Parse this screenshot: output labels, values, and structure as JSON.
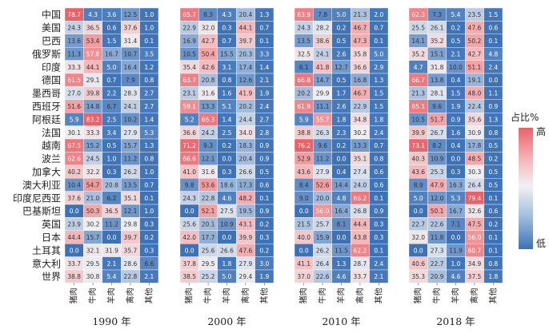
{
  "chart_data": {
    "type": "heatmap",
    "rows": [
      "中国",
      "美国",
      "巴西",
      "俄罗斯",
      "印度",
      "德国",
      "墨西哥",
      "西班牙",
      "阿根廷",
      "法国",
      "越南",
      "波兰",
      "加拿大",
      "澳大利亚",
      "印度尼西亚",
      "巴基斯坦",
      "英国",
      "日本",
      "土耳其",
      "意大利",
      "世界"
    ],
    "columns": [
      "猪肉",
      "牛肉",
      "羊肉",
      "禽肉",
      "其他"
    ],
    "legend": {
      "title": "占比%",
      "high": "高",
      "low": "低"
    },
    "panels": [
      {
        "title": "1990 年",
        "values": [
          [
            78.7,
            4.3,
            3.6,
            12.5,
            1.0
          ],
          [
            24.3,
            36.5,
            0.6,
            37.6,
            1.0
          ],
          [
            13.6,
            53.4,
            1.5,
            31.4,
            0.1
          ],
          [
            11.3,
            57.8,
            16.7,
            10.7,
            3.5
          ],
          [
            33.3,
            44.1,
            5.0,
            16.4,
            1.2
          ],
          [
            61.5,
            29.1,
            0.7,
            7.9,
            0.8
          ],
          [
            27.0,
            39.8,
            2.2,
            28.3,
            2.7
          ],
          [
            51.6,
            14.8,
            6.7,
            24.1,
            2.7
          ],
          [
            5.9,
            83.2,
            2.5,
            10.2,
            1.4
          ],
          [
            30.1,
            33.3,
            3.4,
            27.9,
            5.3
          ],
          [
            67.5,
            15.2,
            0.5,
            15.7,
            1.3
          ],
          [
            62.6,
            24.5,
            1.0,
            11.2,
            0.8
          ],
          [
            40.2,
            32.2,
            0.3,
            26.2,
            1.0
          ],
          [
            10.4,
            54.7,
            20.8,
            13.5,
            0.7
          ],
          [
            37.6,
            21.0,
            6.2,
            35.1,
            0.1
          ],
          [
            0.0,
            50.3,
            36.5,
            12.1,
            1.0
          ],
          [
            23.9,
            30.2,
            11.2,
            29.8,
            0.3
          ],
          [
            44.4,
            15.7,
            0.0,
            39.7,
            0.2
          ],
          [
            0.0,
            32.1,
            31.9,
            35.7,
            0.3
          ],
          [
            33.7,
            29.5,
            2.1,
            28.6,
            6.6
          ],
          [
            38.8,
            30.8,
            5.4,
            22.8,
            2.1
          ]
        ]
      },
      {
        "title": "2000 年",
        "values": [
          [
            65.7,
            8.3,
            4.3,
            20.4,
            1.3
          ],
          [
            22.9,
            32.0,
            0.3,
            44.1,
            0.7
          ],
          [
            16.9,
            42.7,
            0.7,
            39.7,
            0.1
          ],
          [
            10.5,
            50.4,
            15.5,
            20.3,
            3.3
          ],
          [
            35.4,
            42.6,
            3.1,
            17.4,
            1.4
          ],
          [
            63.7,
            20.8,
            0.8,
            12.6,
            2.1
          ],
          [
            23.1,
            31.6,
            1.6,
            41.9,
            1.9
          ],
          [
            59.1,
            13.3,
            5.1,
            20.2,
            2.4
          ],
          [
            5.2,
            66.3,
            1.4,
            24.4,
            2.7
          ],
          [
            36.6,
            24.2,
            2.5,
            34.0,
            2.8
          ],
          [
            71.2,
            9.3,
            0.2,
            18.3,
            0.9
          ],
          [
            66.6,
            12.1,
            0.0,
            20.4,
            0.9
          ],
          [
            41.0,
            31.6,
            0.3,
            26.6,
            0.5
          ],
          [
            9.8,
            53.6,
            18.6,
            17.3,
            0.6
          ],
          [
            24.3,
            22.8,
            4.6,
            48.2,
            0.1
          ],
          [
            0.0,
            52.1,
            27.5,
            19.5,
            0.9
          ],
          [
            25.6,
            20.1,
            10.9,
            43.1,
            0.2
          ],
          [
            42.0,
            17.7,
            0.0,
            39.9,
            0.3
          ],
          [
            0.0,
            25.6,
            26.6,
            47.6,
            0.2
          ],
          [
            37.8,
            29.5,
            1.8,
            27.9,
            3.0
          ],
          [
            38.5,
            25.2,
            5.0,
            29.4,
            1.9
          ]
        ]
      },
      {
        "title": "2010 年",
        "values": [
          [
            63.9,
            7.8,
            5.0,
            21.3,
            2.0
          ],
          [
            24.3,
            28.2,
            0.2,
            46.7,
            0.7
          ],
          [
            13.5,
            38.6,
            0.5,
            47.3,
            0.1
          ],
          [
            32.5,
            24.1,
            2.6,
            35.8,
            5.0
          ],
          [
            6.1,
            41.8,
            12.7,
            36.6,
            2.9
          ],
          [
            66.8,
            14.7,
            0.5,
            16.8,
            1.3
          ],
          [
            20.2,
            29.9,
            1.7,
            46.7,
            1.5
          ],
          [
            61.9,
            11.1,
            2.6,
            22.9,
            1.5
          ],
          [
            5.9,
            55.7,
            1.8,
            34.8,
            1.8
          ],
          [
            38.8,
            26.3,
            2.3,
            30.2,
            2.4
          ],
          [
            76.2,
            9.6,
            0.2,
            13.3,
            0.7
          ],
          [
            52.9,
            11.2,
            0.0,
            35.1,
            0.8
          ],
          [
            43.6,
            27.9,
            0.4,
            27.4,
            0.6
          ],
          [
            8.4,
            52.6,
            14.4,
            24.0,
            0.6
          ],
          [
            9.0,
            20.0,
            4.8,
            66.2,
            0.1
          ],
          [
            0.0,
            56.0,
            16.4,
            26.8,
            0.9
          ],
          [
            21.5,
            25.7,
            8.1,
            44.4,
            0.3
          ],
          [
            40.0,
            15.9,
            0.0,
            43.8,
            0.3
          ],
          [
            0.0,
            26.2,
            11.5,
            62.2,
            0.1
          ],
          [
            41.1,
            26.4,
            1.3,
            28.7,
            2.4
          ],
          [
            37.0,
            22.6,
            4.6,
            33.7,
            2.1
          ]
        ]
      },
      {
        "title": "2018 年",
        "values": [
          [
            62.3,
            7.3,
            5.4,
            23.5,
            1.5
          ],
          [
            25.5,
            26.1,
            0.2,
            47.6,
            0.6
          ],
          [
            14.1,
            35.2,
            0.5,
            50.2,
            0.1
          ],
          [
            35.2,
            15.1,
            2.1,
            42.7,
            4.8
          ],
          [
            4.7,
            31.8,
            10.0,
            51.1,
            2.4
          ],
          [
            66.7,
            13.8,
            0.4,
            19.1,
            0.0
          ],
          [
            21.3,
            28.1,
            1.5,
            48.0,
            1.1
          ],
          [
            65.1,
            9.6,
            1.9,
            22.4,
            0.9
          ],
          [
            10.5,
            51.7,
            0.9,
            35.6,
            1.3
          ],
          [
            39.9,
            26.7,
            1.6,
            30.9,
            0.8
          ],
          [
            73.1,
            8.2,
            0.4,
            17.8,
            0.5
          ],
          [
            40.3,
            10.9,
            0.0,
            48.5,
            0.2
          ],
          [
            43.6,
            25.3,
            0.3,
            30.3,
            0.5
          ],
          [
            8.9,
            47.9,
            16.3,
            26.4,
            0.5
          ],
          [
            5.0,
            12.0,
            5.3,
            79.4,
            0.1
          ],
          [
            0.0,
            50.1,
            16.7,
            32.6,
            0.6
          ],
          [
            22.7,
            22.6,
            7.1,
            47.5,
            0.2
          ],
          [
            32.0,
            11.8,
            0.0,
            56.0,
            0.1
          ],
          [
            0.0,
            27.3,
            11.9,
            60.7,
            0.1
          ],
          [
            40.6,
            22.7,
            1.0,
            34.9,
            0.8
          ],
          [
            35.3,
            20.9,
            4.6,
            37.5,
            1.8
          ]
        ]
      }
    ]
  }
}
